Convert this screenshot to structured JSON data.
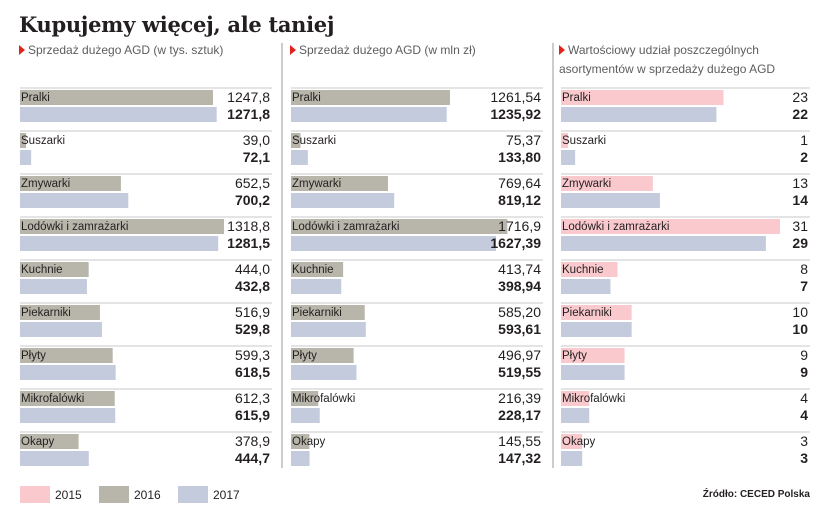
{
  "title": "Kupujemy więcej, ale taniej",
  "colors": {
    "y2015": "#f9c9cd",
    "y2016": "#b8b6aa",
    "y2017": "#c3cbdc",
    "divider": "#9a9a9a",
    "marker": "#e4231b"
  },
  "legend": [
    {
      "label": "2015",
      "color": "#f9c9cd"
    },
    {
      "label": "2016",
      "color": "#b8b6aa"
    },
    {
      "label": "2017",
      "color": "#c3cbdc"
    }
  ],
  "source": "Źródło: CECED Polska",
  "chart_data": [
    {
      "type": "bar",
      "title": "Sprzedaż dużego AGD (w tys. sztuk)",
      "categories": [
        "Pralki",
        "Suszarki",
        "Zmywarki",
        "Lodówki i zamrażarki",
        "Kuchnie",
        "Piekarniki",
        "Płyty",
        "Mikrofalówki",
        "Okapy"
      ],
      "series": [
        {
          "name": "2016",
          "color": "#b8b6aa",
          "values": [
            1247.8,
            39.0,
            652.5,
            1318.8,
            444.0,
            516.9,
            599.3,
            612.3,
            378.9
          ],
          "labels": [
            "1247,8",
            "39,0",
            "652,5",
            "1318,8",
            "444,0",
            "516,9",
            "599,3",
            "612,3",
            "378,9"
          ]
        },
        {
          "name": "2017",
          "color": "#c3cbdc",
          "values": [
            1271.8,
            72.1,
            700.2,
            1281.5,
            432.8,
            529.8,
            618.5,
            615.9,
            444.7
          ],
          "labels": [
            "1271,8",
            "72,1",
            "700,2",
            "1281,5",
            "432,8",
            "529,8",
            "618,5",
            "615,9",
            "444,7"
          ]
        }
      ],
      "xlim": [
        0,
        1500
      ]
    },
    {
      "type": "bar",
      "title": "Sprzedaż dużego AGD (w mln zł)",
      "categories": [
        "Pralki",
        "Suszarki",
        "Zmywarki",
        "Lodówki i zamrażarki",
        "Kuchnie",
        "Piekarniki",
        "Płyty",
        "Mikrofalówki",
        "Okapy"
      ],
      "series": [
        {
          "name": "2016",
          "color": "#b8b6aa",
          "values": [
            1261.54,
            75.37,
            769.64,
            1716.9,
            413.74,
            585.2,
            496.97,
            216.39,
            145.55
          ],
          "labels": [
            "1261,54",
            "75,37",
            "769,64",
            "1716,9",
            "413,74",
            "585,20",
            "496,97",
            "216,39",
            "145,55"
          ]
        },
        {
          "name": "2017",
          "color": "#c3cbdc",
          "values": [
            1235.92,
            133.8,
            819.12,
            1627.39,
            398.94,
            593.61,
            519.55,
            228.17,
            147.32
          ],
          "labels": [
            "1235,92",
            "133,80",
            "819,12",
            "1627,39",
            "398,94",
            "593,61",
            "519,55",
            "228,17",
            "147,32"
          ]
        }
      ],
      "xlim": [
        0,
        2000
      ]
    },
    {
      "type": "bar",
      "title": "Wartościowy udział poszczególnych asortymentów w sprzedaży dużego AGD",
      "categories": [
        "Pralki",
        "Suszarki",
        "Zmywarki",
        "Lodówki i zamrażarki",
        "Kuchnie",
        "Piekarniki",
        "Płyty",
        "Mikrofalówki",
        "Okapy"
      ],
      "series": [
        {
          "name": "2015",
          "color": "#f9c9cd",
          "values": [
            23,
            1,
            13,
            31,
            8,
            10,
            9,
            4,
            3
          ],
          "labels": [
            "23",
            "1",
            "13",
            "31",
            "8",
            "10",
            "9",
            "4",
            "3"
          ]
        },
        {
          "name": "2017",
          "color": "#c3cbdc",
          "values": [
            22,
            2,
            14,
            29,
            7,
            10,
            9,
            4,
            3
          ],
          "labels": [
            "22",
            "2",
            "14",
            "29",
            "7",
            "10",
            "9",
            "4",
            "3"
          ]
        }
      ],
      "xlim": [
        0,
        31
      ]
    }
  ]
}
